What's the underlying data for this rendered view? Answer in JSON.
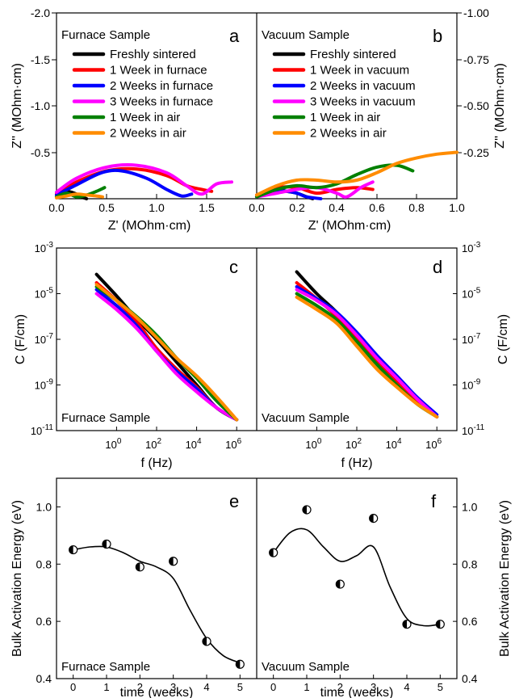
{
  "figure": {
    "row1": {
      "xlabel": "Z' (MOhm·cm)",
      "ylabel": "Z'' (MOhm·cm)",
      "left_ticks": [
        "-2.0",
        "-1.5",
        "-1.0",
        "-0.5"
      ],
      "right_ticks": [
        "-1.00",
        "-0.75",
        "-0.50",
        "-0.25"
      ],
      "left_xticks": [
        "0.0",
        "0.5",
        "1.0",
        "1.5"
      ],
      "right_xticks": [
        "0.0",
        "0.2",
        "0.4",
        "0.6",
        "0.8",
        "1.0"
      ]
    },
    "row2": {
      "xlabel": "f (Hz)",
      "ylabel": "C (F/cm)",
      "yticks_base": [
        "10",
        "10",
        "10",
        "10",
        "10"
      ],
      "yticks_exp": [
        "-3",
        "-5",
        "-7",
        "-9",
        "-11"
      ],
      "xticks_base": [
        "10",
        "10",
        "10",
        "10"
      ],
      "xticks_exp": [
        "0",
        "2",
        "4",
        "6"
      ]
    },
    "row3": {
      "xlabel": "time (weeks)",
      "ylabel": "Bulk Activation Energy (eV)",
      "yticks": [
        "0.4",
        "0.6",
        "0.8",
        "1.0"
      ],
      "xticks": [
        "0",
        "1",
        "2",
        "3",
        "4",
        "5"
      ]
    }
  },
  "panels": {
    "a": {
      "letter": "a",
      "title": "Furnace Sample"
    },
    "b": {
      "letter": "b",
      "title": "Vacuum Sample"
    },
    "c": {
      "letter": "c",
      "title": "Furnace Sample"
    },
    "d": {
      "letter": "d",
      "title": "Vacuum Sample"
    },
    "e": {
      "letter": "e",
      "title": "Furnace Sample"
    },
    "f": {
      "letter": "f",
      "title": "Vacuum Sample"
    }
  },
  "legend_a": [
    {
      "label": "Freshly sintered",
      "color": "#000000"
    },
    {
      "label": "1 Week in furnace",
      "color": "#ff0000"
    },
    {
      "label": "2 Weeks in furnace",
      "color": "#0000ff"
    },
    {
      "label": "3 Weeks in furnace",
      "color": "#ff00ff"
    },
    {
      "label": "1 Week in air",
      "color": "#008000"
    },
    {
      "label": "2 Weeks in air",
      "color": "#ff8c00"
    }
  ],
  "legend_b": [
    {
      "label": "Freshly sintered",
      "color": "#000000"
    },
    {
      "label": "1 Week in vacuum",
      "color": "#ff0000"
    },
    {
      "label": "2 Weeks in vacuum",
      "color": "#0000ff"
    },
    {
      "label": "3 Weeks in vacuum",
      "color": "#ff00ff"
    },
    {
      "label": "1 Week in air",
      "color": "#008000"
    },
    {
      "label": "2 Weeks in air",
      "color": "#ff8c00"
    }
  ],
  "chart_data": [
    {
      "panel": "a",
      "type": "line",
      "xlabel": "Z' (MOhm·cm)",
      "ylabel": "Z'' (MOhm·cm)",
      "xlim": [
        0,
        2.0
      ],
      "ylim": [
        0,
        -2.0
      ],
      "series": [
        {
          "name": "Freshly sintered",
          "color": "#000000",
          "x": [
            0,
            0.05,
            0.1,
            0.15,
            0.2,
            0.25,
            0.3
          ],
          "y": [
            -0.02,
            -0.06,
            -0.08,
            -0.07,
            -0.05,
            -0.02,
            0
          ]
        },
        {
          "name": "1 Week in furnace",
          "color": "#ff0000",
          "x": [
            0,
            0.2,
            0.5,
            0.8,
            1.1,
            1.3,
            1.45,
            1.55
          ],
          "y": [
            -0.05,
            -0.18,
            -0.3,
            -0.32,
            -0.25,
            -0.14,
            -0.1,
            -0.08
          ]
        },
        {
          "name": "2 Weeks in furnace",
          "color": "#0000ff",
          "x": [
            0,
            0.2,
            0.45,
            0.65,
            0.9,
            1.1,
            1.25,
            1.35
          ],
          "y": [
            -0.04,
            -0.15,
            -0.28,
            -0.3,
            -0.22,
            -0.1,
            -0.03,
            -0.05
          ]
        },
        {
          "name": "3 Weeks in furnace",
          "color": "#ff00ff",
          "x": [
            0,
            0.2,
            0.5,
            0.8,
            1.1,
            1.3,
            1.45,
            1.6,
            1.75
          ],
          "y": [
            -0.07,
            -0.22,
            -0.34,
            -0.36,
            -0.28,
            -0.14,
            -0.05,
            -0.16,
            -0.18
          ]
        },
        {
          "name": "1 Week in air",
          "color": "#008000",
          "x": [
            0,
            0.1,
            0.2,
            0.3,
            0.4,
            0.48
          ],
          "y": [
            -0.02,
            -0.06,
            -0.02,
            -0.04,
            -0.08,
            -0.12
          ]
        },
        {
          "name": "2 Weeks in air",
          "color": "#ff8c00",
          "x": [
            0,
            0.1,
            0.2,
            0.3,
            0.4,
            0.46
          ],
          "y": [
            -0.01,
            -0.03,
            -0.05,
            -0.04,
            -0.03,
            -0.02
          ]
        }
      ]
    },
    {
      "panel": "b",
      "type": "line",
      "xlabel": "Z' (MOhm·cm)",
      "ylabel": "Z'' (MOhm·cm)",
      "xlim": [
        0,
        1.0
      ],
      "ylim": [
        0,
        -1.0
      ],
      "series": [
        {
          "name": "Freshly sintered",
          "color": "#000000",
          "x": [
            0,
            0.05,
            0.1,
            0.15,
            0.2,
            0.25,
            0.28
          ],
          "y": [
            -0.01,
            -0.04,
            -0.05,
            -0.04,
            -0.03,
            -0.01,
            0
          ]
        },
        {
          "name": "1 Week in vacuum",
          "color": "#ff0000",
          "x": [
            0,
            0.1,
            0.2,
            0.3,
            0.4,
            0.5,
            0.58
          ],
          "y": [
            -0.02,
            -0.06,
            -0.06,
            -0.03,
            -0.05,
            -0.06,
            -0.05
          ]
        },
        {
          "name": "2 Weeks in vacuum",
          "color": "#0000ff",
          "x": [
            0,
            0.05,
            0.1,
            0.15,
            0.2,
            0.25,
            0.32
          ],
          "y": [
            -0.01,
            -0.03,
            -0.04,
            -0.04,
            -0.03,
            -0.01,
            0
          ]
        },
        {
          "name": "3 Weeks in vacuum",
          "color": "#ff00ff",
          "x": [
            0,
            0.1,
            0.2,
            0.3,
            0.4,
            0.45,
            0.52,
            0.58
          ],
          "y": [
            -0.01,
            -0.03,
            -0.05,
            -0.06,
            -0.03,
            -0.01,
            -0.06,
            -0.09
          ]
        },
        {
          "name": "1 Week in air",
          "color": "#008000",
          "x": [
            0,
            0.1,
            0.2,
            0.3,
            0.4,
            0.5,
            0.6,
            0.7,
            0.78
          ],
          "y": [
            -0.01,
            -0.05,
            -0.07,
            -0.06,
            -0.08,
            -0.13,
            -0.17,
            -0.18,
            -0.15
          ]
        },
        {
          "name": "2 Weeks in air",
          "color": "#ff8c00",
          "x": [
            0,
            0.1,
            0.2,
            0.3,
            0.4,
            0.5,
            0.6,
            0.7,
            0.8,
            0.9,
            1.0
          ],
          "y": [
            -0.02,
            -0.07,
            -0.1,
            -0.1,
            -0.09,
            -0.1,
            -0.14,
            -0.19,
            -0.22,
            -0.24,
            -0.25
          ]
        }
      ]
    },
    {
      "panel": "c",
      "type": "line",
      "xlabel": "f (Hz)",
      "ylabel": "C (F/cm)",
      "xscale": "log",
      "yscale": "log",
      "xlim": [
        0.001,
        10000000.0
      ],
      "ylim": [
        1e-11,
        0.001
      ],
      "series": [
        {
          "name": "Freshly sintered",
          "color": "#000000",
          "x": [
            0.1,
            1,
            10,
            100,
            1000,
            10000,
            100000,
            1000000
          ],
          "y": [
            7e-05,
            8e-06,
            8e-07,
            1e-07,
            1e-08,
            1e-09,
            1e-10,
            3e-11
          ]
        },
        {
          "name": "1 Week in furnace",
          "color": "#ff0000",
          "x": [
            0.1,
            1,
            10,
            100,
            1000,
            10000,
            100000,
            1000000
          ],
          "y": [
            3e-05,
            5e-06,
            6e-07,
            4e-08,
            5e-09,
            8e-10,
            1e-10,
            3e-11
          ]
        },
        {
          "name": "2 Weeks in furnace",
          "color": "#0000ff",
          "x": [
            0.1,
            1,
            10,
            100,
            1000,
            10000,
            100000,
            1000000
          ],
          "y": [
            1.5e-05,
            3e-06,
            4e-07,
            3e-08,
            4e-09,
            7e-10,
            1e-10,
            3e-11
          ]
        },
        {
          "name": "3 Weeks in furnace",
          "color": "#ff00ff",
          "x": [
            0.1,
            1,
            10,
            100,
            1000,
            10000,
            100000,
            1000000
          ],
          "y": [
            1e-05,
            2e-06,
            3e-07,
            3e-08,
            3e-09,
            5e-10,
            1e-10,
            3e-11
          ]
        },
        {
          "name": "1 Week in air",
          "color": "#008000",
          "x": [
            0.1,
            1,
            10,
            100,
            1000,
            10000,
            100000,
            1000000
          ],
          "y": [
            2e-05,
            5e-06,
            1e-06,
            1.5e-07,
            1.5e-08,
            2e-09,
            2e-10,
            3e-11
          ]
        },
        {
          "name": "2 Weeks in air",
          "color": "#ff8c00",
          "x": [
            0.1,
            1,
            10,
            100,
            1000,
            10000,
            100000,
            1000000
          ],
          "y": [
            2.5e-05,
            5e-06,
            9e-07,
            1.2e-07,
            1.5e-08,
            2.5e-09,
            3e-10,
            3e-11
          ]
        }
      ]
    },
    {
      "panel": "d",
      "type": "line",
      "xlabel": "f (Hz)",
      "ylabel": "C (F/cm)",
      "xscale": "log",
      "yscale": "log",
      "xlim": [
        0.001,
        10000000.0
      ],
      "ylim": [
        1e-11,
        0.001
      ],
      "series": [
        {
          "name": "Freshly sintered",
          "color": "#000000",
          "x": [
            0.1,
            1,
            10,
            100,
            1000,
            10000,
            100000,
            1000000
          ],
          "y": [
            9e-05,
            1e-05,
            1.5e-06,
            1.5e-07,
            1.5e-08,
            1.5e-09,
            2e-10,
            4e-11
          ]
        },
        {
          "name": "1 Week in vacuum",
          "color": "#ff0000",
          "x": [
            0.1,
            1,
            10,
            100,
            1000,
            10000,
            100000,
            1000000
          ],
          "y": [
            3e-05,
            6e-06,
            1e-06,
            1.2e-07,
            1.2e-08,
            1.5e-09,
            2e-10,
            4e-11
          ]
        },
        {
          "name": "2 Weeks in vacuum",
          "color": "#0000ff",
          "x": [
            0.1,
            1,
            10,
            100,
            1000,
            10000,
            100000,
            1000000
          ],
          "y": [
            2e-05,
            6e-06,
            1.5e-06,
            2e-07,
            2e-08,
            2.5e-09,
            3e-10,
            5e-11
          ]
        },
        {
          "name": "3 Weeks in vacuum",
          "color": "#ff00ff",
          "x": [
            0.1,
            1,
            10,
            100,
            1000,
            10000,
            100000,
            1000000
          ],
          "y": [
            1.5e-05,
            5e-06,
            1.2e-06,
            1.5e-07,
            1.5e-08,
            2e-09,
            2.5e-10,
            4e-11
          ]
        },
        {
          "name": "1 Week in air",
          "color": "#008000",
          "x": [
            0.1,
            1,
            10,
            100,
            1000,
            10000,
            100000,
            1000000
          ],
          "y": [
            1e-05,
            3e-06,
            7e-07,
            8e-08,
            8e-09,
            1e-09,
            1.5e-10,
            4e-11
          ]
        },
        {
          "name": "2 Weeks in air",
          "color": "#ff8c00",
          "x": [
            0.1,
            1,
            10,
            100,
            1000,
            10000,
            100000,
            1000000
          ],
          "y": [
            7e-06,
            2e-06,
            5e-07,
            5e-08,
            5e-09,
            8e-10,
            1.5e-10,
            4e-11
          ]
        }
      ]
    },
    {
      "panel": "e",
      "type": "scatter",
      "xlabel": "time (weeks)",
      "ylabel": "Bulk Activation Energy (eV)",
      "xlim": [
        -0.5,
        5.5
      ],
      "ylim": [
        0.4,
        1.1
      ],
      "points": {
        "x": [
          0,
          1,
          2,
          3,
          4,
          5
        ],
        "y": [
          0.85,
          0.87,
          0.79,
          0.81,
          0.53,
          0.45
        ]
      },
      "fit": {
        "x": [
          0,
          0.5,
          1,
          1.5,
          2,
          2.5,
          3,
          3.5,
          4,
          4.5,
          5
        ],
        "y": [
          0.85,
          0.86,
          0.86,
          0.84,
          0.81,
          0.79,
          0.75,
          0.64,
          0.54,
          0.48,
          0.455
        ]
      }
    },
    {
      "panel": "f",
      "type": "scatter",
      "xlabel": "time (weeks)",
      "ylabel": "Bulk Activation Energy (eV)",
      "xlim": [
        -0.5,
        5.5
      ],
      "ylim": [
        0.4,
        1.1
      ],
      "points": {
        "x": [
          0,
          1,
          2,
          3,
          4,
          5
        ],
        "y": [
          0.84,
          0.99,
          0.73,
          0.96,
          0.59,
          0.59
        ]
      },
      "fit": {
        "x": [
          0,
          0.5,
          1,
          1.5,
          2,
          2.5,
          3,
          3.5,
          4,
          4.5,
          5
        ],
        "y": [
          0.84,
          0.91,
          0.92,
          0.86,
          0.81,
          0.83,
          0.86,
          0.72,
          0.61,
          0.585,
          0.59
        ]
      }
    }
  ]
}
